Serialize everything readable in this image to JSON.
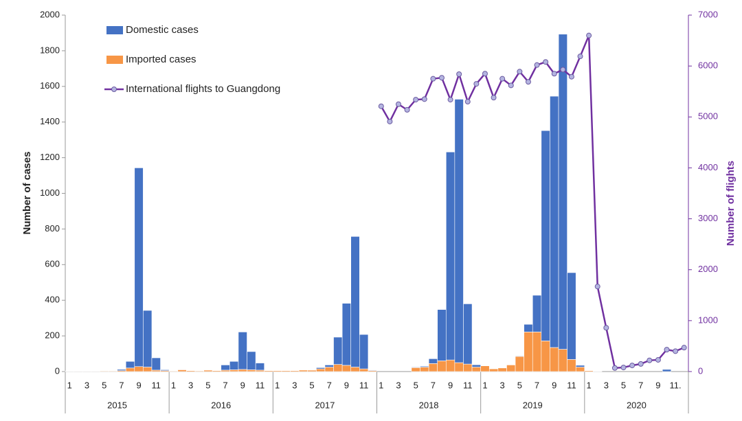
{
  "chart_data": {
    "type": "combo",
    "categories": [
      "1",
      null,
      "3",
      null,
      "5",
      null,
      "7",
      null,
      "9",
      null,
      "11",
      null,
      "1",
      null,
      "3",
      null,
      "5",
      null,
      "7",
      null,
      "9",
      null,
      "11",
      null,
      "1",
      null,
      "3",
      null,
      "5",
      null,
      "7",
      null,
      "9",
      null,
      "11",
      null,
      "1",
      null,
      "3",
      null,
      "5",
      null,
      "7",
      null,
      "9",
      null,
      "11",
      null,
      "1",
      null,
      "3",
      null,
      "5",
      null,
      "7",
      null,
      "9",
      null,
      "11",
      null,
      "1",
      null,
      "3",
      null,
      "5",
      null,
      "7",
      null,
      "9",
      null,
      "11.",
      null
    ],
    "x_groups": [
      "2015",
      "2016",
      "2017",
      "2018",
      "2019",
      "2020"
    ],
    "y_label": "Number of cases",
    "y2_label": "Number of flights",
    "ylim": [
      0,
      2000
    ],
    "yticks": [
      0,
      200,
      400,
      600,
      800,
      1000,
      1200,
      1400,
      1600,
      1800,
      2000
    ],
    "y2lim": [
      0,
      7000
    ],
    "y2ticks": [
      0,
      1000,
      2000,
      3000,
      4000,
      5000,
      6000,
      7000
    ],
    "series": [
      {
        "name": "Imported cases",
        "type": "bar",
        "color": "#f79646",
        "values": [
          2,
          2,
          2,
          2,
          3,
          3,
          5,
          20,
          28,
          25,
          8,
          5,
          3,
          10,
          5,
          4,
          8,
          5,
          8,
          10,
          12,
          10,
          8,
          5,
          5,
          5,
          5,
          8,
          8,
          15,
          25,
          40,
          35,
          25,
          15,
          5,
          0,
          0,
          0,
          0,
          22,
          25,
          45,
          60,
          65,
          50,
          42,
          25,
          32,
          15,
          20,
          37,
          85,
          222,
          222,
          172,
          135,
          125,
          68,
          25,
          5,
          2,
          0,
          0,
          0,
          0,
          0,
          0,
          0,
          0,
          0,
          0
        ]
      },
      {
        "name": "Domestic cases",
        "type": "bar",
        "color": "#4472c4",
        "values": [
          1,
          0,
          0,
          0,
          1,
          1,
          7,
          37,
          1115,
          318,
          69,
          5,
          2,
          2,
          0,
          1,
          2,
          0,
          29,
          47,
          210,
          102,
          40,
          0,
          0,
          0,
          0,
          0,
          2,
          7,
          12,
          153,
          348,
          733,
          193,
          3,
          0,
          0,
          0,
          0,
          3,
          5,
          27,
          288,
          1167,
          1478,
          338,
          13,
          0,
          0,
          0,
          0,
          3,
          43,
          206,
          1180,
          1410,
          1768,
          487,
          10,
          0,
          0,
          0,
          0,
          0,
          0,
          0,
          0,
          0,
          12,
          0,
          0
        ]
      },
      {
        "name": "International flights to Guangdong",
        "type": "line",
        "axis": "y2",
        "color": "#7030a0",
        "values": [
          null,
          null,
          null,
          null,
          null,
          null,
          null,
          null,
          null,
          null,
          null,
          null,
          null,
          null,
          null,
          null,
          null,
          null,
          null,
          null,
          null,
          null,
          null,
          null,
          null,
          null,
          null,
          null,
          null,
          null,
          null,
          null,
          null,
          null,
          null,
          null,
          5210,
          4910,
          5250,
          5140,
          5340,
          5350,
          5750,
          5770,
          5340,
          5840,
          5300,
          5650,
          5850,
          5380,
          5750,
          5620,
          5890,
          5690,
          6020,
          6080,
          5850,
          5930,
          5790,
          6190,
          6600,
          1670,
          860,
          70,
          80,
          120,
          150,
          220,
          230,
          430,
          400,
          470
        ]
      }
    ]
  }
}
